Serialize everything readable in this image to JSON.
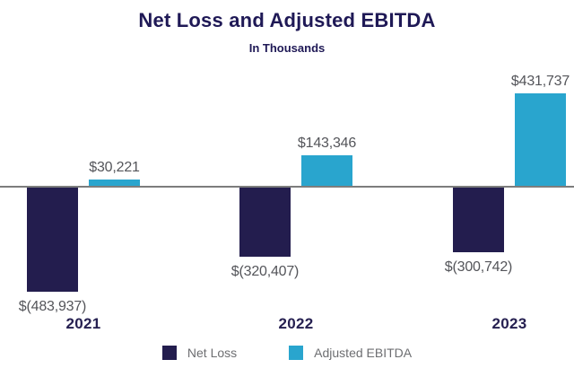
{
  "title": "Net Loss and Adjusted EBITDA",
  "subtitle": "In Thousands",
  "colors": {
    "net_loss": "#231d4e",
    "adjusted_ebitda": "#29a5ce",
    "title_text": "#1f1956",
    "value_label_text": "#54555a",
    "legend_text": "#6d6e71",
    "zero_axis_line": "#7d7d7d"
  },
  "chart_data": {
    "type": "bar",
    "title": "Net Loss and Adjusted EBITDA",
    "subtitle": "In Thousands",
    "categories": [
      "2021",
      "2022",
      "2023"
    ],
    "series": [
      {
        "name": "Net Loss",
        "color": "#231d4e",
        "values": [
          -483937,
          -320407,
          -300742
        ],
        "labels": [
          "$(483,937)",
          "$(320,407)",
          "$(300,742)"
        ]
      },
      {
        "name": "Adjusted EBITDA",
        "color": "#29a5ce",
        "values": [
          30221,
          143346,
          431737
        ],
        "labels": [
          "$30,221",
          "$143,346",
          "$431,737"
        ]
      }
    ],
    "ylim": [
      -490000,
      440000
    ],
    "grid": false,
    "zero_line": true,
    "legend_position": "bottom"
  }
}
